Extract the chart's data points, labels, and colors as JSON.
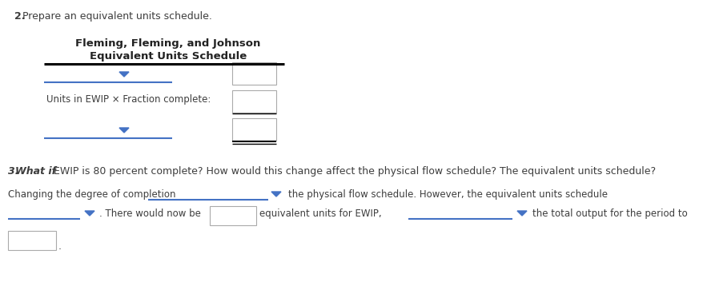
{
  "bg_color": "#ffffff",
  "title_line1": "Fleming, Fleming, and Johnson",
  "title_line2": "Equivalent Units Schedule",
  "question2_text_bold": "2.",
  "question2_text_rest": " Prepare an equivalent units schedule.",
  "question3_bold": "3. What if",
  "question3_rest": " EWIP is 80 percent complete? How would this change affect the physical flow schedule? The equivalent units schedule?",
  "line3_part1": "Changing the degree of completion",
  "line3_part2": "the physical flow schedule. However, the equivalent units schedule",
  "line4_part1": ". There would now be",
  "line4_part2": "equivalent units for EWIP,",
  "line4_part3": "the total output for the period to",
  "units_label": "Units in EWIP × Fraction complete:",
  "dropdown_color": "#4472c4",
  "line_color_black": "#000000",
  "line_color_blue": "#4472c4",
  "text_color": "#3d3d3d",
  "figw": 8.79,
  "figh": 3.53,
  "dpi": 100
}
